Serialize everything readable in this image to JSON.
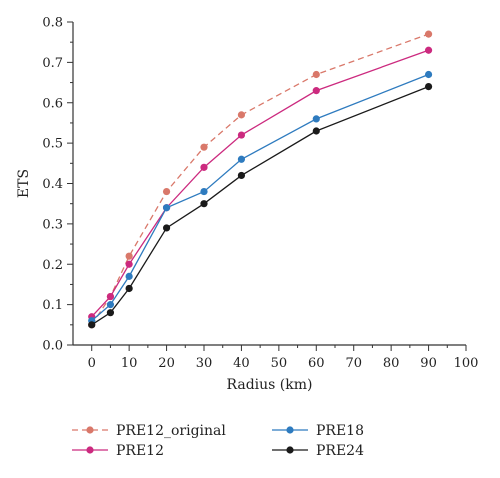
{
  "chart_data": {
    "type": "line",
    "title": "",
    "xlabel": "Radius (km)",
    "ylabel": "ETS",
    "xlim": [
      -5,
      100
    ],
    "ylim": [
      0,
      0.8
    ],
    "x_ticks": [
      0,
      10,
      20,
      30,
      40,
      50,
      60,
      70,
      80,
      90,
      100
    ],
    "y_ticks": [
      "0.0",
      "0.1",
      "0.2",
      "0.3",
      "0.4",
      "0.5",
      "0.6",
      "0.7",
      "0.8"
    ],
    "grid": false,
    "legend_position": "bottom",
    "x": [
      0,
      5,
      10,
      20,
      30,
      40,
      60,
      90
    ],
    "series": [
      {
        "name": "PRE12_original",
        "color": "#d9786a",
        "dashed": true,
        "values": [
          0.05,
          0.12,
          0.22,
          0.38,
          0.49,
          0.57,
          0.67,
          0.77
        ]
      },
      {
        "name": "PRE12",
        "color": "#cc2a7f",
        "dashed": false,
        "values": [
          0.07,
          0.12,
          0.2,
          0.34,
          0.44,
          0.52,
          0.63,
          0.73
        ]
      },
      {
        "name": "PRE18",
        "color": "#2e7bbf",
        "dashed": false,
        "values": [
          0.06,
          0.1,
          0.17,
          0.34,
          0.38,
          0.46,
          0.56,
          0.67
        ]
      },
      {
        "name": "PRE24",
        "color": "#1a1a1a",
        "dashed": false,
        "values": [
          0.05,
          0.08,
          0.14,
          0.29,
          0.35,
          0.42,
          0.53,
          0.64
        ]
      }
    ]
  }
}
